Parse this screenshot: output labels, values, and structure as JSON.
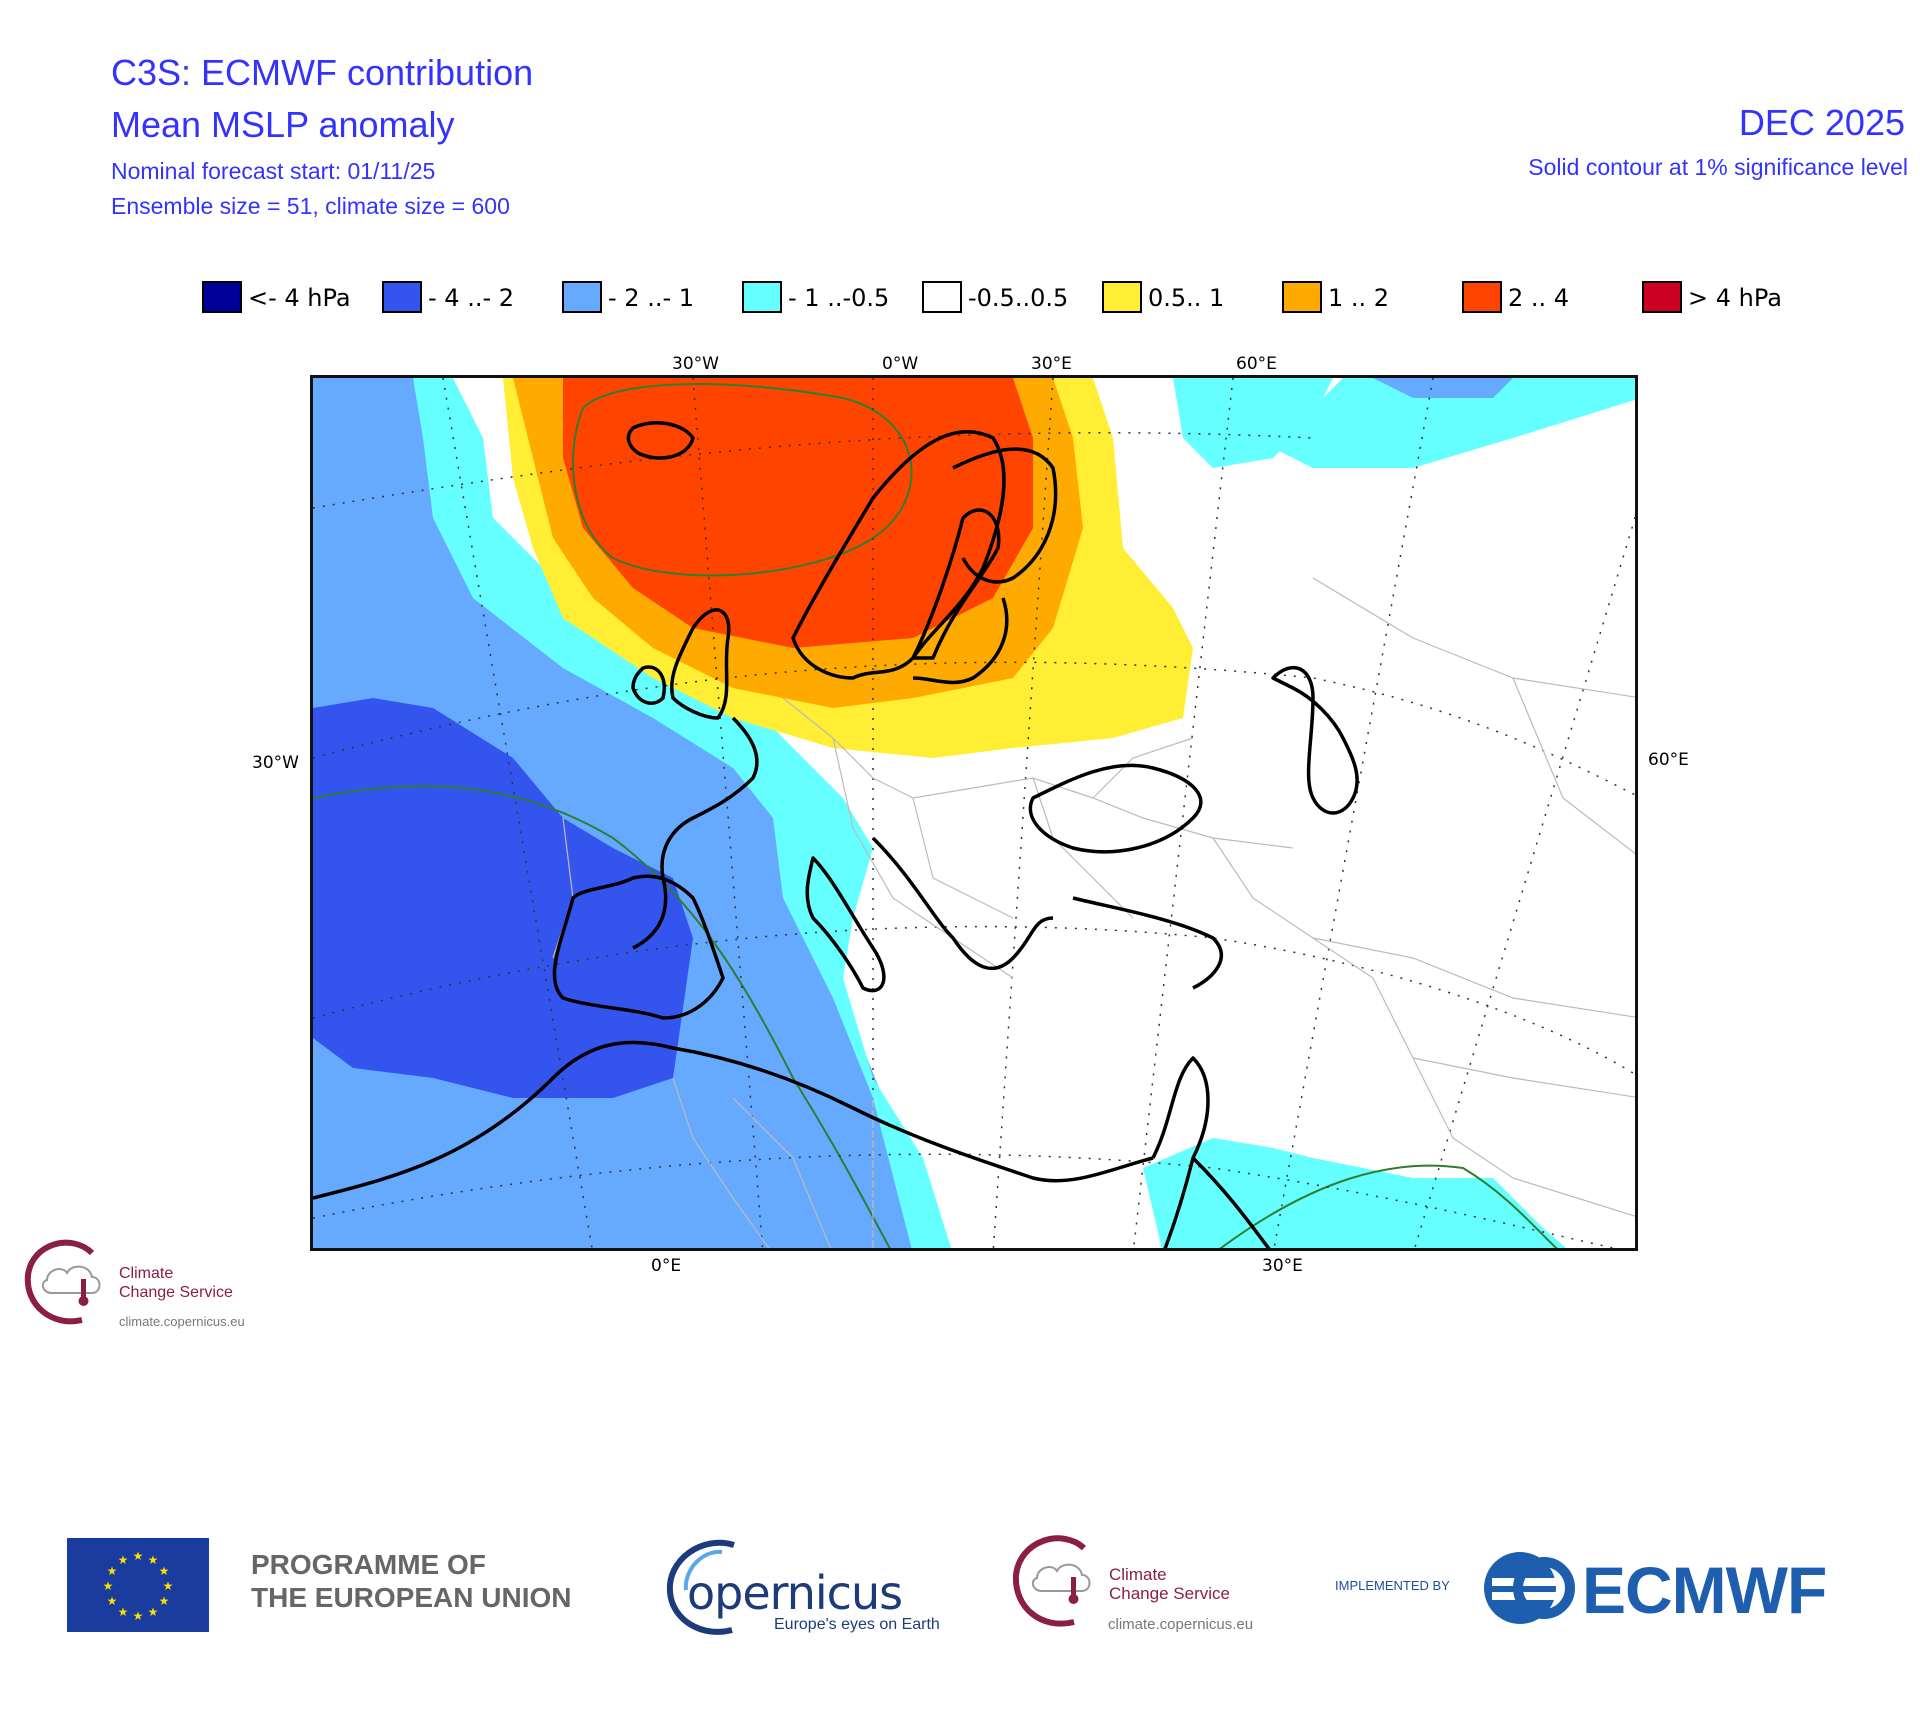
{
  "header": {
    "title": "C3S: ECMWF contribution",
    "subtitle": "Mean MSLP anomaly",
    "forecast_start": "Nominal forecast start: 01/11/25",
    "ensemble": "Ensemble size = 51, climate size = 600",
    "valid_month": "DEC 2025",
    "significance": "Solid contour at 1% significance level"
  },
  "legend": [
    {
      "label": "<- 4 hPa",
      "color": "#000099"
    },
    {
      "label": "- 4 ..- 2",
      "color": "#3355ee"
    },
    {
      "label": "- 2 ..- 1",
      "color": "#66aaff"
    },
    {
      "label": "- 1 ..-0.5",
      "color": "#66ffff"
    },
    {
      "label": "-0.5..0.5",
      "color": "#ffffff"
    },
    {
      "label": "0.5.. 1",
      "color": "#ffee33"
    },
    {
      "label": "1 .. 2",
      "color": "#ffaa00"
    },
    {
      "label": "2 .. 4",
      "color": "#ff4400"
    },
    {
      "label": ">  4 hPa",
      "color": "#cc0022"
    }
  ],
  "map": {
    "top_ticks": [
      "30°W",
      "0°W",
      "30°E",
      "60°E"
    ],
    "left_tick": "30°W",
    "right_tick": "60°E",
    "bottom_ticks": [
      "0°E",
      "30°E"
    ]
  },
  "logos": {
    "c3s_name": "Climate\nChange Service",
    "c3s_url": "climate.copernicus.eu",
    "eu_programme": "PROGRAMME OF\nTHE EUROPEAN UNION",
    "copernicus_word": "opernicus",
    "copernicus_tagline": "Europe's eyes on Earth",
    "implemented_by": "IMPLEMENTED BY",
    "ecmwf": "ECMWF"
  }
}
